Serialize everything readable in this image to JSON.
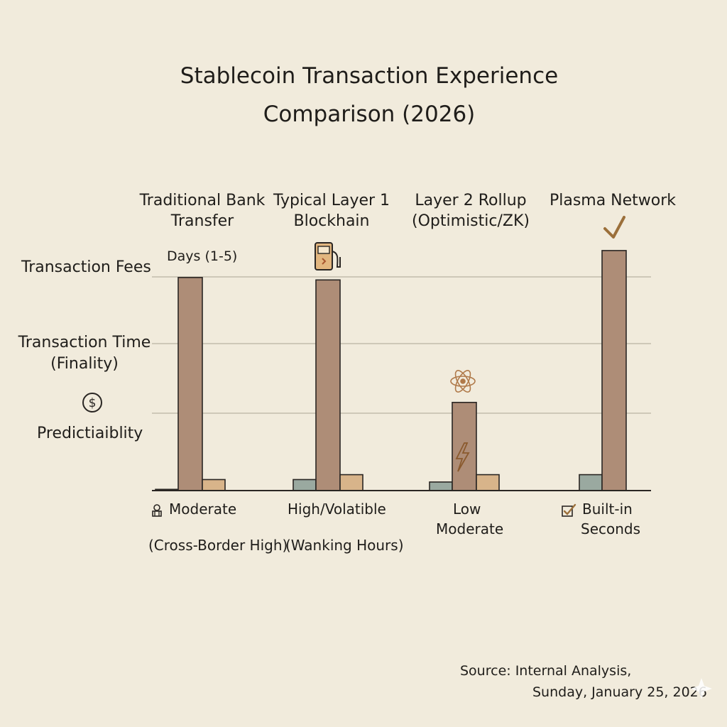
{
  "colors": {
    "background": "#f1ebdc",
    "bar_main": "#ae8d77",
    "bar_secondary": "#d8b48a",
    "bar_tertiary": "#9aa9a0",
    "stroke": "#2a2623",
    "grid": "#b9b2a3",
    "checkmark": "#9b6f3a"
  },
  "chart_data": {
    "type": "bar",
    "title": "Stablecoin Transaction Experience Comparison (2026)",
    "categories": [
      "Traditional Bank Transfer",
      "Typical Layer 1 Blockhain",
      "Layer 2 Rollup (Optimistic/ZK)",
      "Plasma Network"
    ],
    "y_labels": [
      "Transaction Fees",
      "Transaction Time (Finality)",
      "Predictiaiblity"
    ],
    "series": [
      {
        "values": [
          0.5,
          4.5,
          3.5,
          6.5
        ],
        "color": "#9aa9a0"
      },
      {
        "values": [
          87,
          86,
          36,
          98
        ],
        "color": "#ae8d77"
      },
      {
        "values": [
          4.5,
          6.5,
          6.5,
          0
        ]
      }
    ],
    "ylim": [
      0,
      100
    ],
    "grid": true,
    "annotations": {
      "top_label": "Days (1-5)",
      "fees": [
        "Moderate",
        "High/Volatible",
        "Low",
        "Built-in"
      ],
      "fees_icons": [
        "bank-icon",
        "",
        "",
        "checkbox-icon"
      ],
      "time_secondary": [
        "(Cross-Border High)",
        "(Wanking Hours)",
        "Moderate",
        "Seconds"
      ],
      "top_icons": [
        "",
        "fuel-pump-icon",
        "atom-icon",
        "checkmark-icon"
      ],
      "bar_icon": "lightning-icon",
      "y_icon": "dollar-icon"
    }
  },
  "source": {
    "line1": "Source: Internal Analysis,",
    "line2": "Sunday, January 25, 2026"
  }
}
